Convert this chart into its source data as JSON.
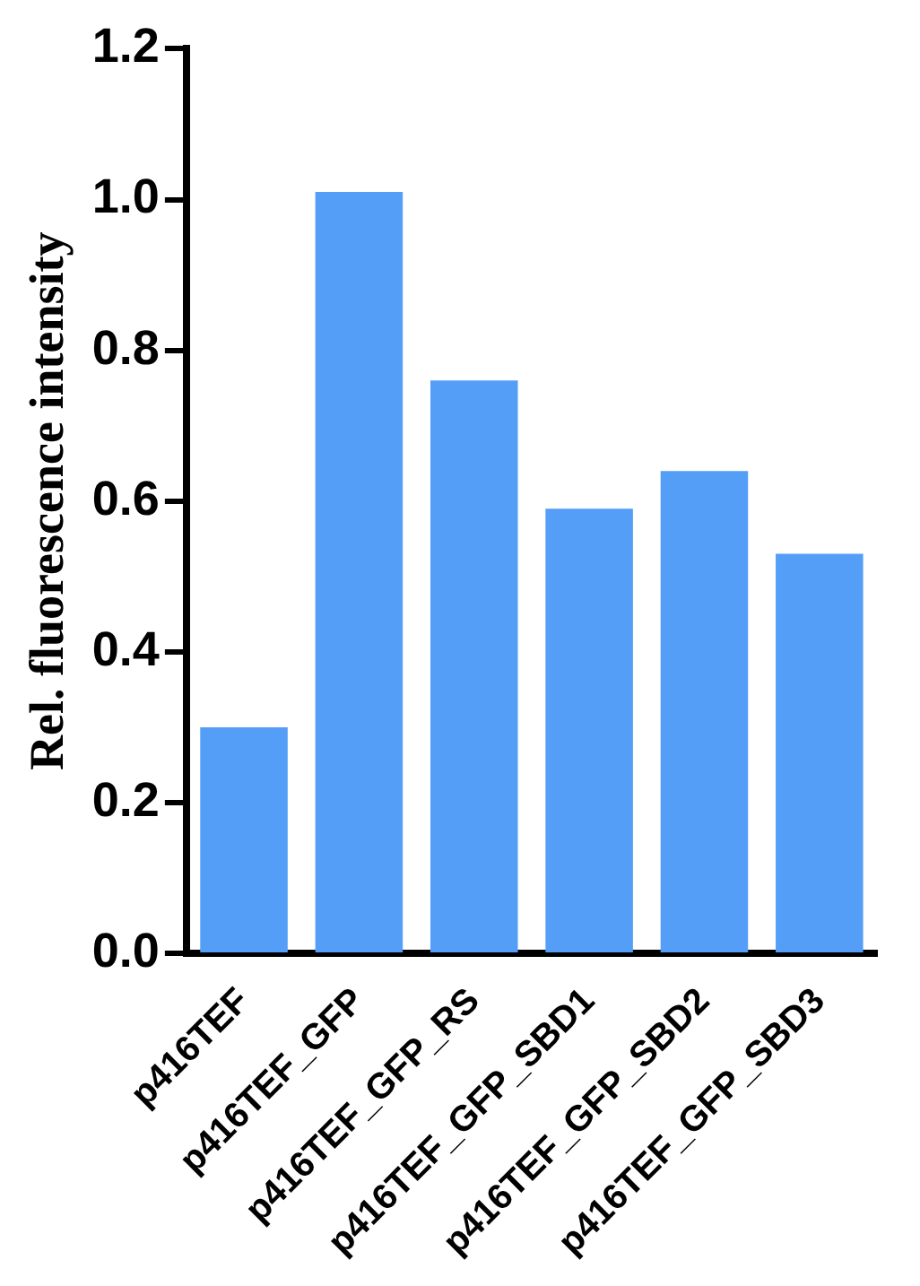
{
  "chart_data": {
    "type": "bar",
    "ylabel": "Rel. fluorescence intensity",
    "categories": [
      "p416TEF",
      "p416TEF_GFP",
      "p416TEF_GFP_RS",
      "p416TEF_GFP_SBD1",
      "p416TEF_GFP_SBD2",
      "p416TEF_GFP_SBD3"
    ],
    "values": [
      0.3,
      1.01,
      0.76,
      0.59,
      0.64,
      0.53
    ],
    "color": "#559ef8",
    "ylim": [
      0,
      1.2
    ],
    "yticks": [
      {
        "value": 0,
        "label": "0.0"
      },
      {
        "value": 0.2,
        "label": "0.2"
      },
      {
        "value": 0.4,
        "label": "0.4"
      },
      {
        "value": 0.6,
        "label": "0.6"
      },
      {
        "value": 0.8,
        "label": "0.8"
      },
      {
        "value": 1,
        "label": "1.0"
      },
      {
        "value": 1.2,
        "label": "1.2"
      }
    ],
    "grid": false,
    "legend": false
  }
}
